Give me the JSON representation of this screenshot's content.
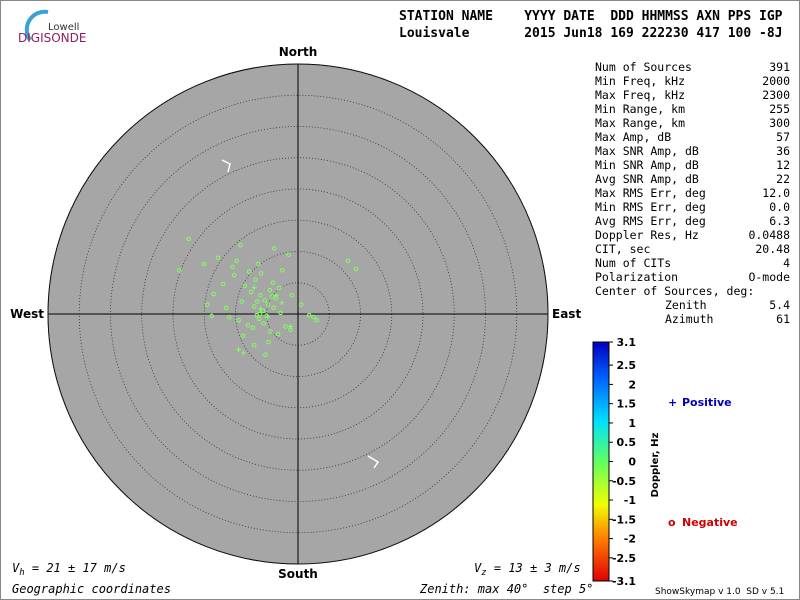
{
  "chart_data": {
    "type": "skymap",
    "logo": {
      "top": "Lowell",
      "bottom": "DIGISONDE"
    },
    "header": {
      "line1": "STATION NAME    YYYY DATE  DDD HHMMSS AXN PPS IGP",
      "line2": "Louisvale       2015 Jun18 169 222230 417 100 -8J"
    },
    "directions": {
      "north": "North",
      "south": "South",
      "east": "East",
      "west": "West"
    },
    "rlim": [
      0,
      40
    ],
    "rticks": [
      5,
      10,
      15,
      20,
      25,
      30,
      35,
      40
    ],
    "stats": [
      {
        "label": "Num of Sources",
        "value": "391"
      },
      {
        "label": "Min Freq, kHz",
        "value": "2000"
      },
      {
        "label": "Max Freq, kHz",
        "value": "2300"
      },
      {
        "label": "Min Range, km",
        "value": "255"
      },
      {
        "label": "Max Range, km",
        "value": "300"
      },
      {
        "label": "Max Amp, dB",
        "value": "57"
      },
      {
        "label": "Max SNR Amp, dB",
        "value": "36"
      },
      {
        "label": "Min SNR Amp, dB",
        "value": "12"
      },
      {
        "label": "Avg SNR Amp, dB",
        "value": "22"
      },
      {
        "label": "Max RMS Err, deg",
        "value": "12.0"
      },
      {
        "label": "Min RMS Err, deg",
        "value": "0.0"
      },
      {
        "label": "Avg RMS Err, deg",
        "value": "6.3"
      },
      {
        "label": "Doppler Res, Hz",
        "value": "0.0488"
      },
      {
        "label": "CIT, sec",
        "value": "20.48"
      },
      {
        "label": "Num of CITs",
        "value": "4"
      },
      {
        "label": "Polarization",
        "value": "O-mode"
      },
      {
        "label": "Center of Sources, deg:"
      },
      {
        "label": "Zenith",
        "value": "5.4"
      },
      {
        "label": "Azimuth",
        "value": "61"
      }
    ],
    "series": [
      {
        "name": "Negative",
        "marker": "circle",
        "color": "#80ff60",
        "legend_color": "#d00000",
        "x": [
          -5.3,
          -4.8,
          -6.0,
          -5.6,
          -4.2,
          -3.9,
          -6.5,
          -7.0,
          -5.0,
          -4.5,
          -3.5,
          -2.8,
          -6.2,
          -7.5,
          -8.5,
          -9.0,
          -10.2,
          -12.0,
          -13.5,
          -14.5,
          -11.0,
          -9.5,
          -8.0,
          -6.8,
          -5.9,
          -4.0,
          -3.0,
          -2.0,
          -1.2,
          0.5,
          2.5,
          3.0,
          -1.5,
          -2.5,
          -6.4,
          -7.8,
          -9.8,
          -10.5,
          -8.8,
          -4.4,
          -5.5,
          -6.1,
          -3.2,
          -7.2,
          -11.5,
          8.0,
          9.3,
          -17.5,
          -19.0,
          -15.0,
          -12.8,
          -7.0,
          -5.2,
          -4.7,
          -1.0,
          1.8,
          -3.8,
          -9.2,
          -13.8,
          -6.6
        ],
        "y": [
          2.2,
          1.5,
          3.0,
          0.5,
          2.8,
          1.0,
          2.0,
          1.2,
          -0.3,
          3.8,
          2.5,
          0.2,
          -0.8,
          3.5,
          4.5,
          2.0,
          6.2,
          4.8,
          3.2,
          1.5,
          -0.5,
          -1.0,
          -1.8,
          5.5,
          6.5,
          5.0,
          4.2,
          -2.0,
          -2.5,
          1.5,
          -0.5,
          -1.0,
          9.5,
          7.0,
          8.0,
          6.8,
          8.5,
          7.5,
          -3.5,
          -2.8,
          -1.5,
          0.0,
          -3.2,
          -2.2,
          1.0,
          8.5,
          7.2,
          12.0,
          7.0,
          8.0,
          9.0,
          -5.0,
          -6.5,
          -4.5,
          3.0,
          -0.2,
          10.5,
          11.0,
          -0.3,
          -0.2
        ]
      },
      {
        "name": "Positive",
        "marker": "plus",
        "color": "#80ff60",
        "legend_color": "#0000c0",
        "x": [
          -9.5,
          -8.7,
          -7.0,
          -3.5,
          -4.9,
          -2.6,
          -6.0,
          -1.2
        ],
        "y": [
          -5.7,
          -6.2,
          4.2,
          3.0,
          -0.5,
          1.8,
          0.8,
          -2.0
        ]
      }
    ],
    "colorbar": {
      "label": "Doppler, Hz",
      "lim": [
        -3.1,
        3.1
      ],
      "ticks": [
        3.1,
        2.5,
        2,
        1.5,
        1,
        0.5,
        0,
        -0.5,
        -1,
        -1.5,
        -2,
        -2.5,
        -3.1
      ]
    },
    "footer": {
      "vh": {
        "symbol": "V",
        "sub": "h",
        "text": " = 21 ± 17 m/s"
      },
      "vz": {
        "symbol": "V",
        "sub": "z",
        "text": " = 13 ± 3 m/s"
      },
      "coords": "Geographic coordinates",
      "zenith": "Zenith: max 40°  step 5°",
      "version": "ShowSkymap v 1.0  SD v 5.1"
    }
  }
}
